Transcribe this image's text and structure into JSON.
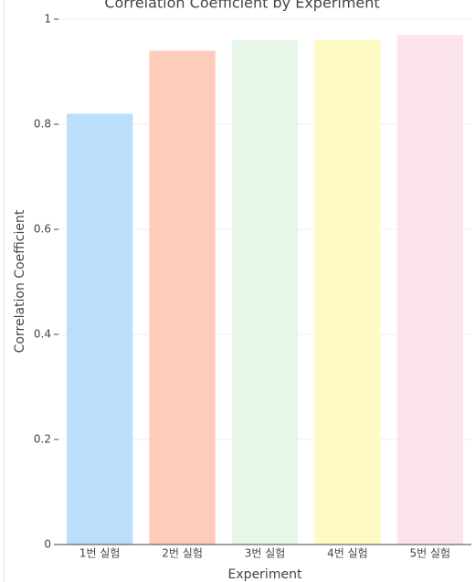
{
  "chart_data": {
    "type": "bar",
    "title": "Correlation Coefficient by Experiment",
    "x_label": "Experiment",
    "y_label": "Correlation Coefficient",
    "categories": [
      "1번 실험",
      "2번 실험",
      "3번 실험",
      "4번 실험",
      "5번 실험"
    ],
    "values": [
      0.82,
      0.94,
      0.96,
      0.96,
      0.97
    ],
    "colors": [
      "#bbdefb",
      "#ffccbc",
      "#e8f5e9",
      "#fff9c4",
      "#fce4ec"
    ],
    "ylim": [
      0,
      1
    ],
    "yticks": [
      0,
      0.2,
      0.4,
      0.6,
      0.8,
      1
    ],
    "grid": true
  }
}
